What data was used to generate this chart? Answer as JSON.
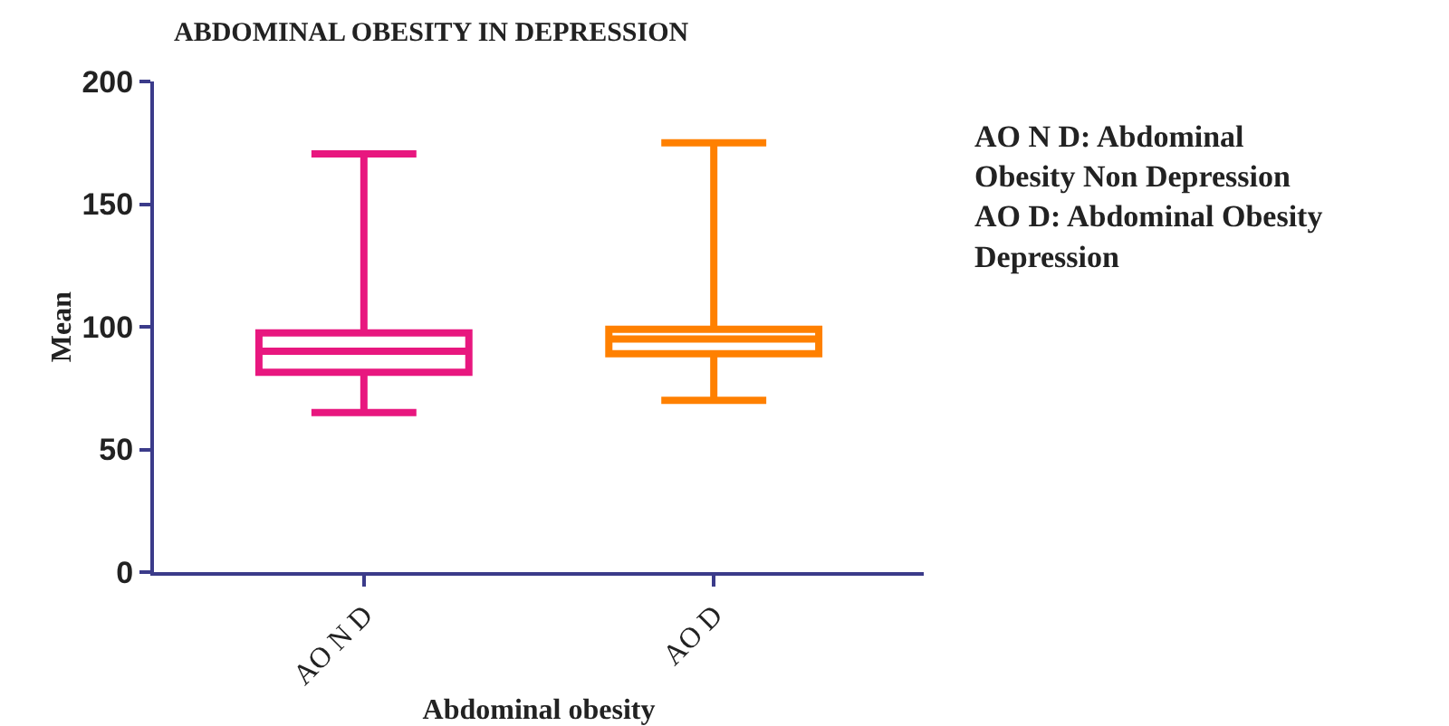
{
  "chart_data": {
    "type": "box",
    "title": "ABDOMINAL OBESITY IN DEPRESSION",
    "xlabel": "Abdominal obesity",
    "ylabel": "Mean",
    "categories": [
      "AO N D",
      "AO D"
    ],
    "boxes": [
      {
        "low": 65,
        "q1": 81.5,
        "median": 90,
        "q3": 97.5,
        "high": 170.5
      },
      {
        "low": 70,
        "q1": 89,
        "median": 95,
        "q3": 99,
        "high": 175
      }
    ],
    "colors": [
      "#e8177f",
      "#ff8000"
    ],
    "ylim": [
      0,
      200
    ],
    "yticks": [
      0,
      50,
      100,
      150,
      200
    ],
    "grid": false,
    "legend": false,
    "annotations": [
      "AO N D: Abdominal Obesity Non Depression",
      "AO D: Abdominal Obesity Depression"
    ]
  }
}
